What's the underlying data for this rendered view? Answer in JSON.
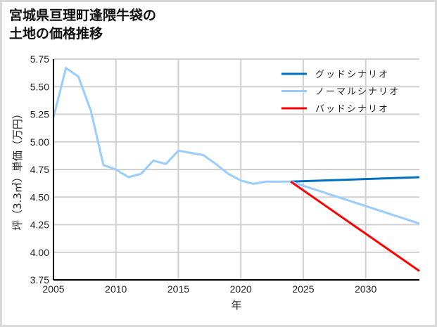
{
  "title": {
    "line1": "宮城県亘理町逢隈牛袋の",
    "line2": "土地の価格推移"
  },
  "chart_data": {
    "type": "line",
    "title": "宮城県亘理町逢隈牛袋の土地の価格推移",
    "xlabel": "年",
    "ylabel": "坪（3.3㎡）単価（万円）",
    "xlim": [
      2005,
      2034.3
    ],
    "ylim": [
      3.75,
      5.75
    ],
    "xticks": [
      2005,
      2010,
      2015,
      2020,
      2025,
      2030
    ],
    "yticks": [
      3.75,
      4.0,
      4.25,
      4.5,
      4.75,
      5.0,
      5.25,
      5.5,
      5.75
    ],
    "ytick_labels": [
      "3.75",
      "4.00",
      "4.25",
      "4.50",
      "4.75",
      "5.00",
      "5.25",
      "5.50",
      "5.75"
    ],
    "grid": true,
    "legend_position": "upper right",
    "series": [
      {
        "name": "グッドシナリオ",
        "color": "#0070c0",
        "x": [
          2024,
          2034.3
        ],
        "values": [
          4.64,
          4.68
        ]
      },
      {
        "name": "ノーマルシナリオ",
        "color": "#99ccff",
        "x": [
          2005,
          2006,
          2007,
          2008,
          2009,
          2010,
          2011,
          2012,
          2013,
          2014,
          2015,
          2016,
          2017,
          2018,
          2019,
          2020,
          2021,
          2022,
          2023,
          2024,
          2034.3
        ],
        "values": [
          5.22,
          5.67,
          5.59,
          5.28,
          4.79,
          4.75,
          4.68,
          4.71,
          4.83,
          4.8,
          4.92,
          4.9,
          4.88,
          4.8,
          4.71,
          4.65,
          4.62,
          4.64,
          4.64,
          4.64,
          4.26
        ]
      },
      {
        "name": "バッドシナリオ",
        "color": "#ff0000",
        "x": [
          2024,
          2034.3
        ],
        "values": [
          4.64,
          3.83
        ]
      }
    ]
  },
  "colors": {
    "grid": "#d0d0d0",
    "axis": "#000000",
    "border": "#d9d9d9"
  }
}
